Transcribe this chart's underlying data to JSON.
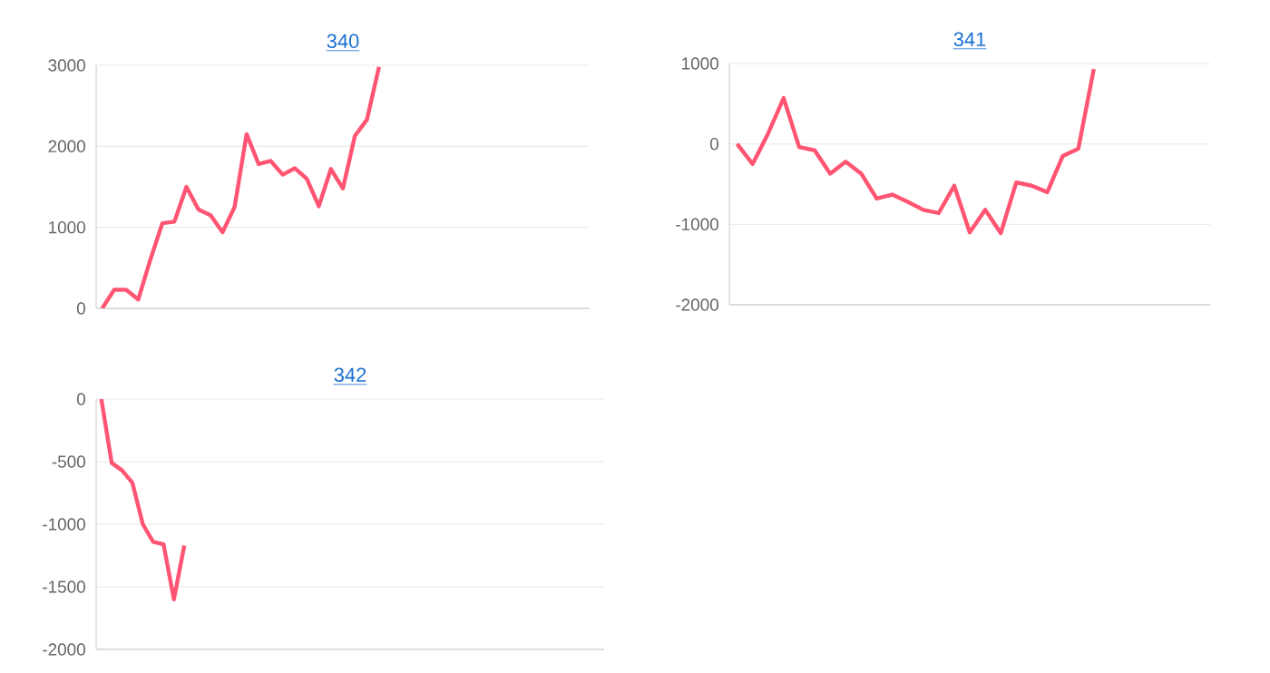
{
  "chart_data": [
    {
      "type": "line",
      "title": "340",
      "categories": [
        null,
        null,
        null,
        null,
        null,
        null,
        null,
        null,
        null,
        null,
        null,
        null,
        null,
        null,
        null,
        null,
        null,
        null,
        null,
        null,
        null,
        null,
        null,
        null,
        null,
        null,
        null,
        null,
        null,
        null,
        null,
        null,
        null,
        null,
        null,
        null,
        null,
        null,
        null,
        null,
        null
      ],
      "values": [
        0,
        230,
        230,
        110,
        600,
        1050,
        1070,
        1500,
        1220,
        1150,
        940,
        1250,
        2150,
        1780,
        1820,
        1650,
        1730,
        1600,
        1260,
        1720,
        1480,
        2130,
        2330,
        2980,
        null,
        null,
        null,
        null,
        null,
        null,
        null,
        null,
        null,
        null,
        null,
        null,
        null,
        null,
        null,
        null,
        null
      ],
      "color": "#ff5572",
      "ylim": [
        0,
        3000
      ],
      "yticks": [
        0,
        1000,
        2000,
        3000
      ],
      "grid": "y",
      "tick_labels": "y"
    },
    {
      "type": "line",
      "title": "341",
      "categories": [
        null,
        null,
        null,
        null,
        null,
        null,
        null,
        null,
        null,
        null,
        null,
        null,
        null,
        null,
        null,
        null,
        null,
        null,
        null,
        null,
        null,
        null,
        null,
        null,
        null,
        null,
        null,
        null,
        null,
        null,
        null
      ],
      "values": [
        0,
        -250,
        130,
        570,
        -40,
        -80,
        -370,
        -220,
        -370,
        -680,
        -630,
        -720,
        -820,
        -860,
        -520,
        -1100,
        -820,
        -1110,
        -480,
        -520,
        -600,
        -150,
        -60,
        930,
        null,
        null,
        null,
        null,
        null,
        null,
        null
      ],
      "color": "#ff5572",
      "ylim": [
        -2000,
        1000
      ],
      "yticks": [
        -2000,
        -1000,
        0,
        1000
      ],
      "grid": "y",
      "tick_labels": "y"
    },
    {
      "type": "line",
      "title": "342",
      "categories": [
        null,
        null,
        null,
        null,
        null,
        null,
        null,
        null,
        null,
        null,
        null,
        null,
        null,
        null,
        null,
        null,
        null,
        null,
        null,
        null,
        null,
        null,
        null,
        null,
        null,
        null,
        null,
        null,
        null,
        null,
        null,
        null,
        null,
        null,
        null,
        null,
        null,
        null,
        null,
        null,
        null,
        null,
        null,
        null,
        null,
        null,
        null,
        null,
        null
      ],
      "values": [
        0,
        -510,
        -570,
        -670,
        -1000,
        -1140,
        -1160,
        -1600,
        -1170,
        null,
        null,
        null,
        null,
        null,
        null,
        null,
        null,
        null,
        null,
        null,
        null,
        null,
        null,
        null,
        null,
        null,
        null,
        null,
        null,
        null,
        null,
        null,
        null,
        null,
        null,
        null,
        null,
        null,
        null,
        null,
        null,
        null,
        null,
        null,
        null,
        null,
        null,
        null,
        null
      ],
      "color": "#ff5572",
      "ylim": [
        -2000,
        0
      ],
      "yticks": [
        -2000,
        -1500,
        -1000,
        -500,
        0
      ],
      "grid": "y",
      "tick_labels": "y"
    }
  ]
}
